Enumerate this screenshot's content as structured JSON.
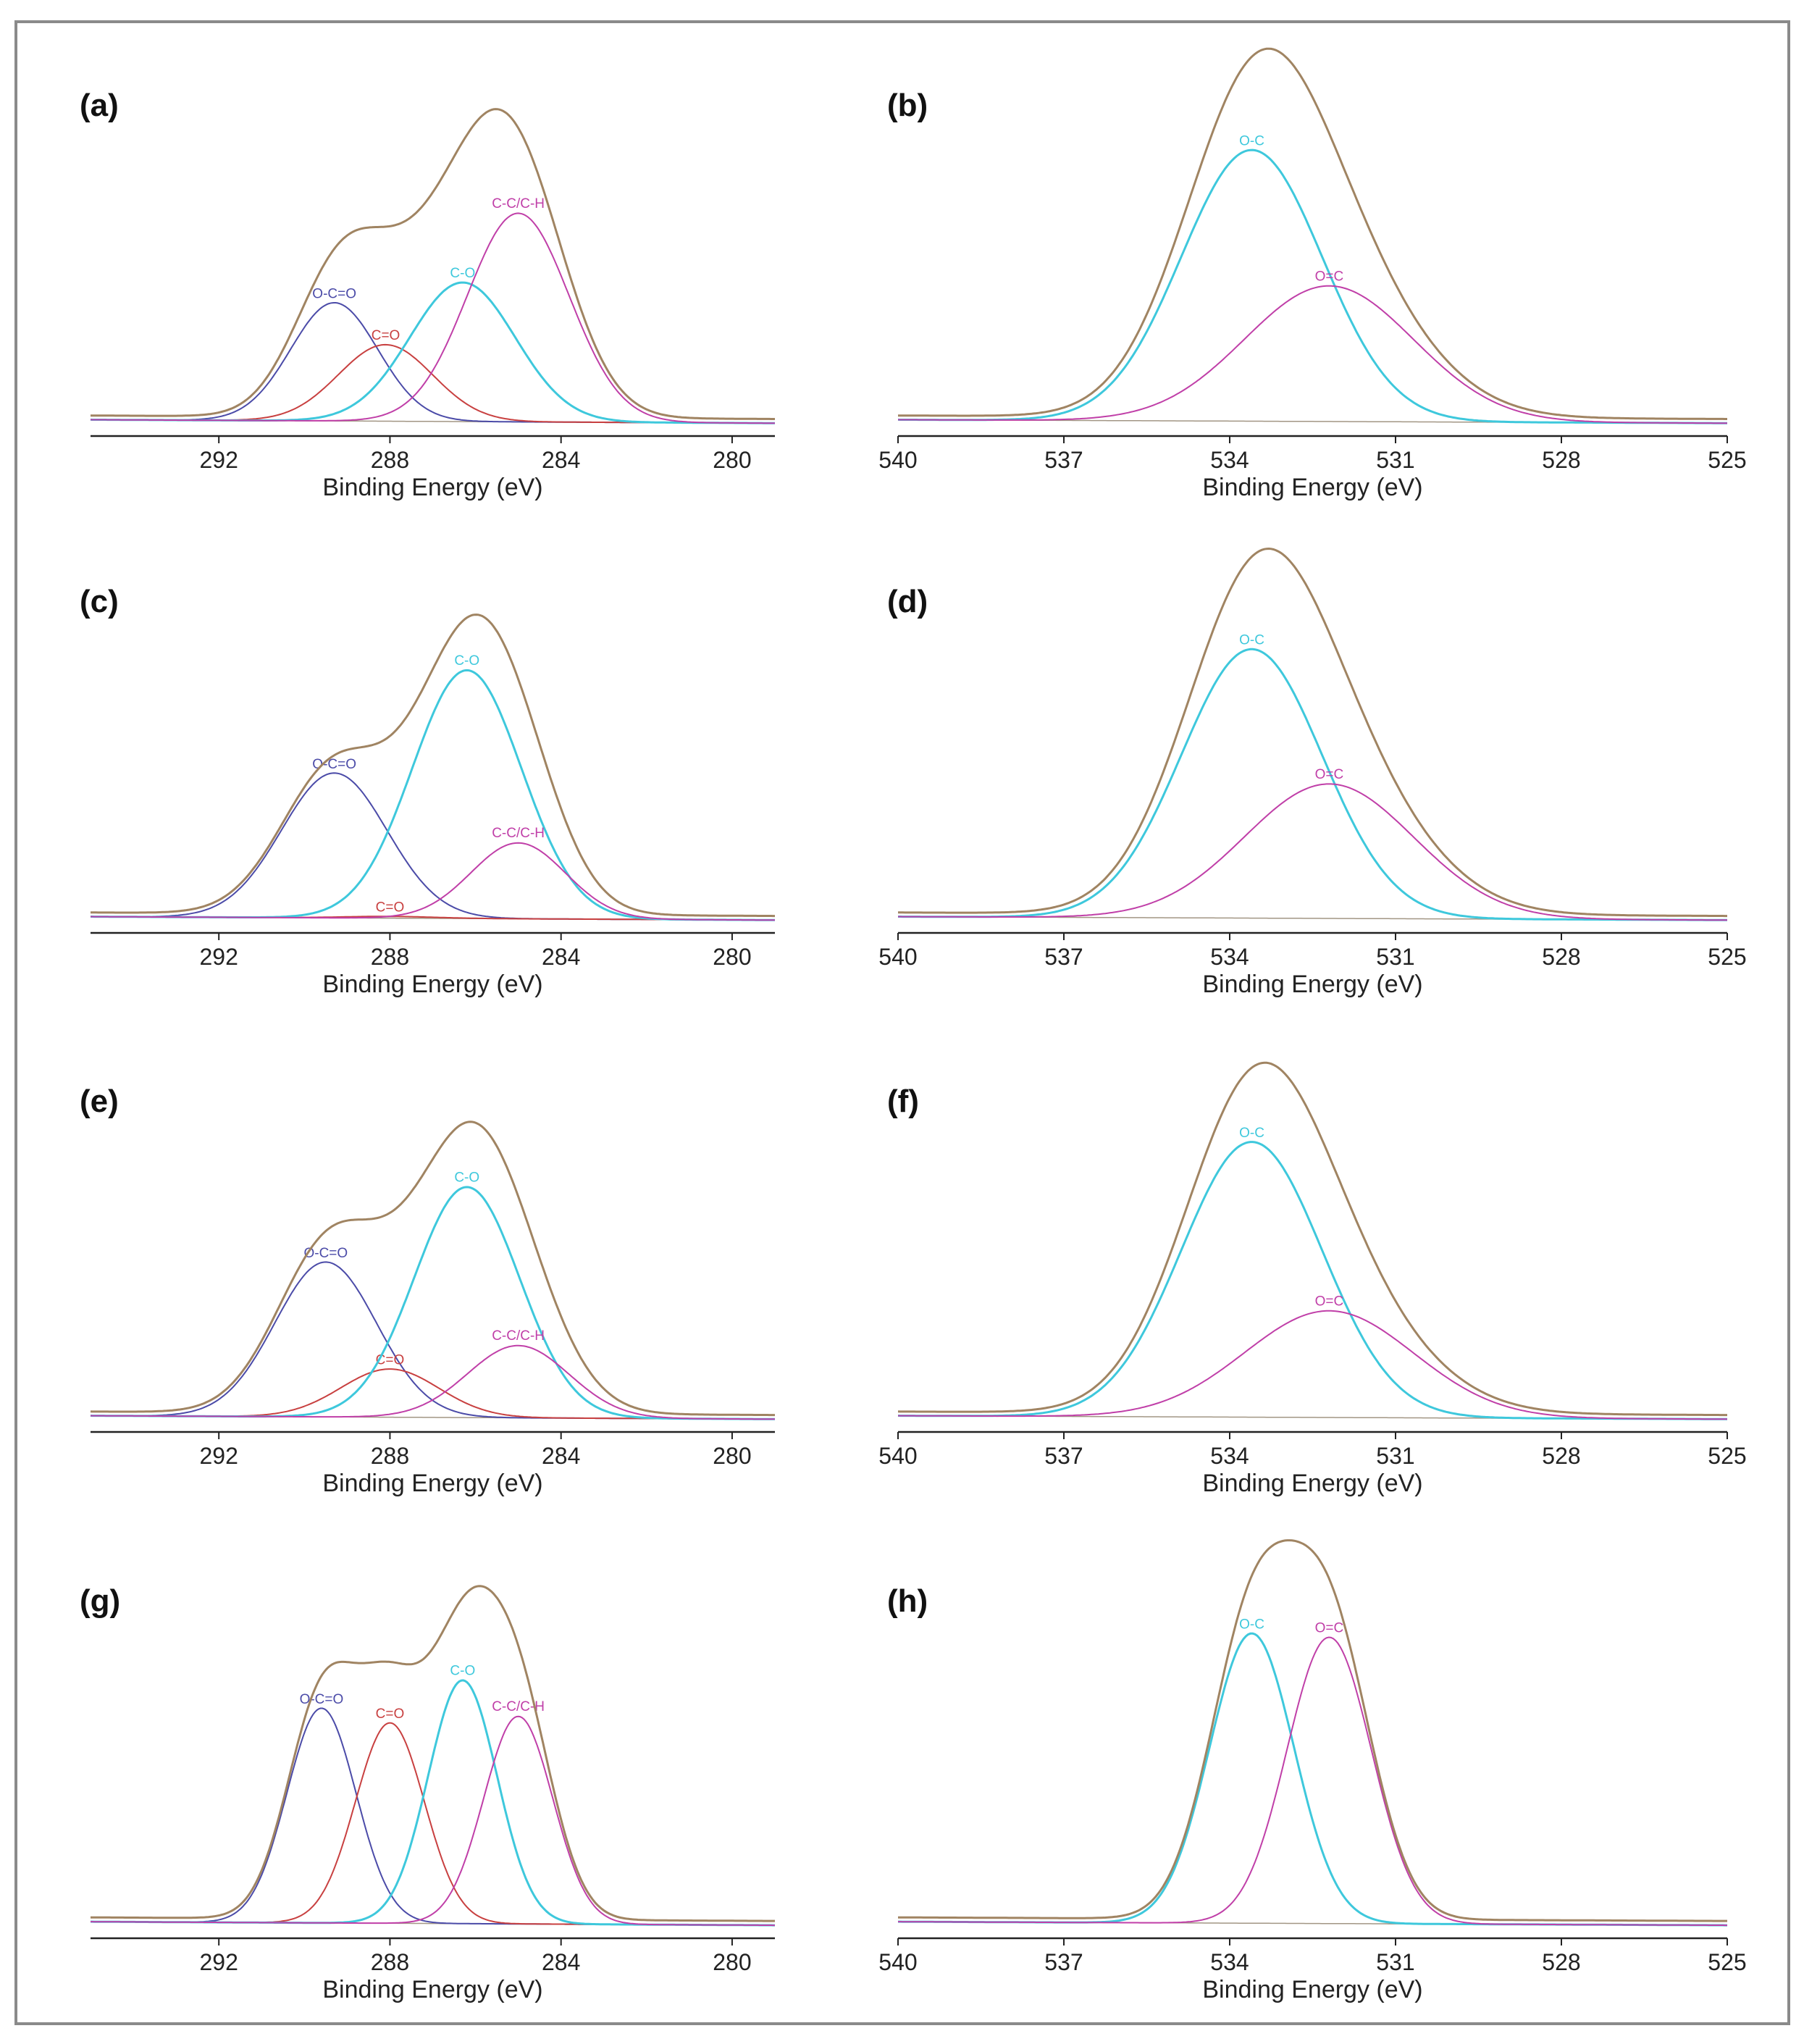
{
  "colors": {
    "envelope": "#a08462",
    "blue": "#4b4ba8",
    "red": "#c84040",
    "cyan": "#3ec8dc",
    "magenta": "#c03fa8",
    "baseline": "#7a6a50",
    "axis": "#222222"
  },
  "chart_data": [
    {
      "id": "a",
      "label": "(a)",
      "type": "line",
      "xlabel": "Binding Energy (eV)",
      "xlim": [
        295,
        279
      ],
      "ticks": [
        292,
        288,
        284,
        280
      ],
      "ylim": [
        0,
        100
      ],
      "envelope_color": "envelope",
      "series": [
        {
          "name": "O-C=O",
          "label": "O-C=O",
          "color": "blue",
          "center": 289.3,
          "fwhm": 2.4,
          "height": 34
        },
        {
          "name": "C=O",
          "label": "C=O",
          "color": "red",
          "center": 288.1,
          "fwhm": 2.6,
          "height": 22
        },
        {
          "name": "C-O",
          "label": "C-O",
          "color": "cyan",
          "center": 286.3,
          "fwhm": 2.9,
          "height": 40
        },
        {
          "name": "C-C/C-H",
          "label": "C-C/C-H",
          "color": "magenta",
          "center": 285.0,
          "fwhm": 2.8,
          "height": 60
        }
      ]
    },
    {
      "id": "b",
      "label": "(b)",
      "type": "line",
      "xlabel": "Binding Energy (eV)",
      "xlim": [
        540,
        525
      ],
      "ticks": [
        540,
        537,
        534,
        531,
        528,
        525
      ],
      "ylim": [
        0,
        100
      ],
      "envelope_color": "envelope",
      "series": [
        {
          "name": "O-C",
          "label": "O-C",
          "color": "cyan",
          "center": 533.6,
          "fwhm": 3.0,
          "height": 78
        },
        {
          "name": "O=C",
          "label": "O=C",
          "color": "magenta",
          "center": 532.2,
          "fwhm": 3.6,
          "height": 39
        }
      ]
    },
    {
      "id": "c",
      "label": "(c)",
      "type": "line",
      "xlabel": "Binding Energy (eV)",
      "xlim": [
        295,
        279
      ],
      "ticks": [
        292,
        288,
        284,
        280
      ],
      "ylim": [
        0,
        100
      ],
      "envelope_color": "envelope",
      "series": [
        {
          "name": "O-C=O",
          "label": "O-C=O",
          "color": "blue",
          "center": 289.3,
          "fwhm": 2.9,
          "height": 42
        },
        {
          "name": "C=O",
          "label": "C=O",
          "color": "red",
          "center": 288.0,
          "fwhm": 2.5,
          "height": 0.5
        },
        {
          "name": "C-O",
          "label": "C-O",
          "color": "cyan",
          "center": 286.2,
          "fwhm": 3.0,
          "height": 72
        },
        {
          "name": "C-C/C-H",
          "label": "C-C/C-H",
          "color": "magenta",
          "center": 285.0,
          "fwhm": 2.6,
          "height": 22
        }
      ]
    },
    {
      "id": "d",
      "label": "(d)",
      "type": "line",
      "xlabel": "Binding Energy (eV)",
      "xlim": [
        540,
        525
      ],
      "ticks": [
        540,
        537,
        534,
        531,
        528,
        525
      ],
      "ylim": [
        0,
        100
      ],
      "envelope_color": "envelope",
      "series": [
        {
          "name": "O-C",
          "label": "O-C",
          "color": "cyan",
          "center": 533.6,
          "fwhm": 3.0,
          "height": 78
        },
        {
          "name": "O=C",
          "label": "O=C",
          "color": "magenta",
          "center": 532.2,
          "fwhm": 3.6,
          "height": 39
        }
      ]
    },
    {
      "id": "e",
      "label": "(e)",
      "type": "line",
      "xlabel": "Binding Energy (eV)",
      "xlim": [
        295,
        279
      ],
      "ticks": [
        292,
        288,
        284,
        280
      ],
      "ylim": [
        0,
        100
      ],
      "envelope_color": "envelope",
      "series": [
        {
          "name": "O-C=O",
          "label": "O-C=O",
          "color": "blue",
          "center": 289.5,
          "fwhm": 2.8,
          "height": 45
        },
        {
          "name": "C=O",
          "label": "C=O",
          "color": "red",
          "center": 288.0,
          "fwhm": 2.7,
          "height": 14
        },
        {
          "name": "C-O",
          "label": "C-O",
          "color": "cyan",
          "center": 286.2,
          "fwhm": 2.9,
          "height": 67
        },
        {
          "name": "C-C/C-H",
          "label": "C-C/C-H",
          "color": "magenta",
          "center": 285.0,
          "fwhm": 2.8,
          "height": 21
        }
      ]
    },
    {
      "id": "f",
      "label": "(f)",
      "type": "line",
      "xlabel": "Binding Energy (eV)",
      "xlim": [
        540,
        525
      ],
      "ticks": [
        540,
        537,
        534,
        531,
        528,
        525
      ],
      "ylim": [
        0,
        100
      ],
      "envelope_color": "envelope",
      "series": [
        {
          "name": "O-C",
          "label": "O-C",
          "color": "cyan",
          "center": 533.6,
          "fwhm": 3.0,
          "height": 80
        },
        {
          "name": "O=C",
          "label": "O=C",
          "color": "magenta",
          "center": 532.2,
          "fwhm": 3.6,
          "height": 31
        }
      ]
    },
    {
      "id": "g",
      "label": "(g)",
      "type": "line",
      "xlabel": "Binding Energy (eV)",
      "xlim": [
        295,
        279
      ],
      "ticks": [
        292,
        288,
        284,
        280
      ],
      "ylim": [
        0,
        100
      ],
      "envelope_color": "envelope",
      "series": [
        {
          "name": "O-C=O",
          "label": "O-C=O",
          "color": "blue",
          "center": 289.6,
          "fwhm": 1.9,
          "height": 60
        },
        {
          "name": "C=O",
          "label": "C=O",
          "color": "red",
          "center": 288.0,
          "fwhm": 1.9,
          "height": 56
        },
        {
          "name": "C-O",
          "label": "C-O",
          "color": "cyan",
          "center": 286.3,
          "fwhm": 1.9,
          "height": 68
        },
        {
          "name": "C-C/C-H",
          "label": "C-C/C-H",
          "color": "magenta",
          "center": 285.0,
          "fwhm": 1.9,
          "height": 58
        }
      ]
    },
    {
      "id": "h",
      "label": "(h)",
      "type": "line",
      "xlabel": "Binding Energy (eV)",
      "xlim": [
        540,
        525
      ],
      "ticks": [
        540,
        537,
        534,
        531,
        528,
        525
      ],
      "ylim": [
        0,
        100
      ],
      "envelope_color": "envelope",
      "series": [
        {
          "name": "O-C",
          "label": "O-C",
          "color": "cyan",
          "center": 533.6,
          "fwhm": 1.8,
          "height": 81
        },
        {
          "name": "O=C",
          "label": "O=C",
          "color": "magenta",
          "center": 532.2,
          "fwhm": 1.8,
          "height": 80
        }
      ]
    }
  ]
}
